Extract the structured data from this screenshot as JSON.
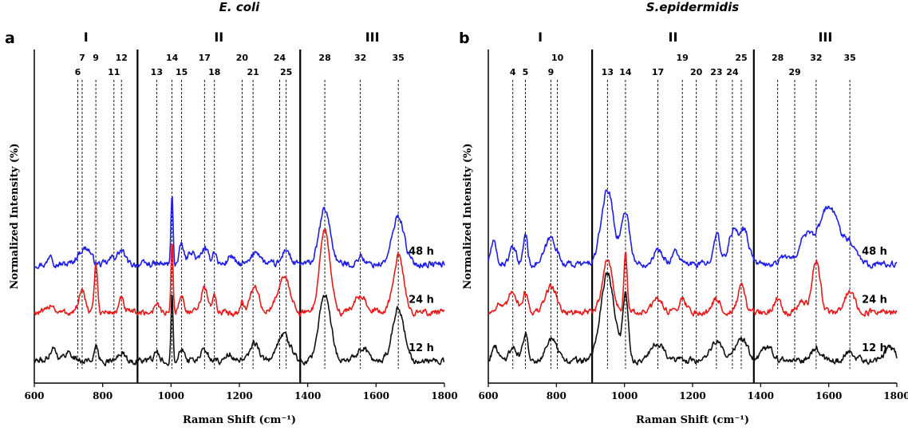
{
  "chart_data": [
    {
      "panel": "a",
      "title": "E. coli",
      "type": "line",
      "xlabel": "Raman Shift (cm⁻¹)",
      "ylabel": "Normalized Intensity (%)",
      "xlim": [
        600,
        1800
      ],
      "xticks": [
        600,
        800,
        1000,
        1200,
        1400,
        1600,
        1800
      ],
      "regions": [
        {
          "label": "I",
          "start": 600,
          "end": 902
        },
        {
          "label": "II",
          "start": 902,
          "end": 1378
        },
        {
          "label": "III",
          "start": 1378,
          "end": 1800
        }
      ],
      "peaks": [
        {
          "label": "6",
          "x": 727,
          "row": 2
        },
        {
          "label": "7",
          "x": 740,
          "row": 1
        },
        {
          "label": "9",
          "x": 780,
          "row": 1
        },
        {
          "label": "11",
          "x": 833,
          "row": 2
        },
        {
          "label": "12",
          "x": 855,
          "row": 1
        },
        {
          "label": "13",
          "x": 958,
          "row": 2
        },
        {
          "label": "14",
          "x": 1003,
          "row": 1
        },
        {
          "label": "15",
          "x": 1031,
          "row": 2
        },
        {
          "label": "17",
          "x": 1098,
          "row": 1
        },
        {
          "label": "18",
          "x": 1127,
          "row": 2
        },
        {
          "label": "20",
          "x": 1208,
          "row": 1
        },
        {
          "label": "21",
          "x": 1240,
          "row": 2
        },
        {
          "label": "24",
          "x": 1318,
          "row": 1
        },
        {
          "label": "25",
          "x": 1337,
          "row": 2
        },
        {
          "label": "28",
          "x": 1450,
          "row": 1
        },
        {
          "label": "32",
          "x": 1554,
          "row": 1
        },
        {
          "label": "35",
          "x": 1665,
          "row": 1
        }
      ],
      "series": [
        {
          "name": "48 h",
          "color": "#1f1fe6",
          "baseline": 2.2,
          "bands": [
            {
              "center": 648,
              "amp": 0.25,
              "width": 6
            },
            {
              "center": 740,
              "amp": 0.3,
              "width": 15
            },
            {
              "center": 760,
              "amp": 0.2,
              "width": 10
            },
            {
              "center": 855,
              "amp": 0.3,
              "width": 10
            },
            {
              "center": 830,
              "amp": 0.15,
              "width": 10
            },
            {
              "center": 1003,
              "amp": 1.6,
              "width": 3
            },
            {
              "center": 1031,
              "amp": 0.45,
              "width": 6
            },
            {
              "center": 1060,
              "amp": 0.3,
              "width": 10
            },
            {
              "center": 1098,
              "amp": 0.35,
              "width": 10
            },
            {
              "center": 1127,
              "amp": 0.3,
              "width": 6
            },
            {
              "center": 1175,
              "amp": 0.2,
              "width": 8
            },
            {
              "center": 1250,
              "amp": 0.3,
              "width": 12
            },
            {
              "center": 1337,
              "amp": 0.35,
              "width": 10
            },
            {
              "center": 1450,
              "amp": 1.25,
              "width": 16
            },
            {
              "center": 1555,
              "amp": 0.2,
              "width": 8
            },
            {
              "center": 1665,
              "amp": 1.1,
              "width": 17
            }
          ]
        },
        {
          "name": "24 h",
          "color": "#e61b1b",
          "baseline": 1.1,
          "bands": [
            {
              "center": 650,
              "amp": 0.2,
              "width": 8
            },
            {
              "center": 740,
              "amp": 0.45,
              "width": 10
            },
            {
              "center": 780,
              "amp": 1.05,
              "width": 5
            },
            {
              "center": 855,
              "amp": 0.3,
              "width": 7
            },
            {
              "center": 958,
              "amp": 0.25,
              "width": 6
            },
            {
              "center": 1003,
              "amp": 1.6,
              "width": 3
            },
            {
              "center": 1031,
              "amp": 0.35,
              "width": 8
            },
            {
              "center": 1098,
              "amp": 0.55,
              "width": 10
            },
            {
              "center": 1127,
              "amp": 0.35,
              "width": 6
            },
            {
              "center": 1208,
              "amp": 0.25,
              "width": 6
            },
            {
              "center": 1245,
              "amp": 0.6,
              "width": 12
            },
            {
              "center": 1330,
              "amp": 0.8,
              "width": 18
            },
            {
              "center": 1450,
              "amp": 1.9,
              "width": 15
            },
            {
              "center": 1555,
              "amp": 0.35,
              "width": 20
            },
            {
              "center": 1665,
              "amp": 1.3,
              "width": 15
            }
          ]
        },
        {
          "name": "12 h",
          "color": "#111111",
          "baseline": 0.0,
          "bands": [
            {
              "center": 655,
              "amp": 0.3,
              "width": 10
            },
            {
              "center": 700,
              "amp": 0.2,
              "width": 12
            },
            {
              "center": 780,
              "amp": 0.3,
              "width": 6
            },
            {
              "center": 855,
              "amp": 0.2,
              "width": 8
            },
            {
              "center": 958,
              "amp": 0.2,
              "width": 6
            },
            {
              "center": 1003,
              "amp": 1.6,
              "width": 3
            },
            {
              "center": 1031,
              "amp": 0.3,
              "width": 8
            },
            {
              "center": 1098,
              "amp": 0.25,
              "width": 10
            },
            {
              "center": 1170,
              "amp": 0.15,
              "width": 10
            },
            {
              "center": 1245,
              "amp": 0.4,
              "width": 12
            },
            {
              "center": 1330,
              "amp": 0.6,
              "width": 18
            },
            {
              "center": 1450,
              "amp": 1.5,
              "width": 17
            },
            {
              "center": 1560,
              "amp": 0.3,
              "width": 15
            },
            {
              "center": 1665,
              "amp": 1.2,
              "width": 17
            }
          ]
        }
      ]
    },
    {
      "panel": "b",
      "title": "S.epidermidis",
      "type": "line",
      "xlabel": "Raman Shift (cm⁻¹)",
      "ylabel": "Normalized Intensity (%)",
      "xlim": [
        600,
        1800
      ],
      "xticks": [
        600,
        800,
        1000,
        1200,
        1400,
        1600,
        1800
      ],
      "regions": [
        {
          "label": "I",
          "start": 600,
          "end": 905
        },
        {
          "label": "II",
          "start": 905,
          "end": 1380
        },
        {
          "label": "III",
          "start": 1380,
          "end": 1800
        }
      ],
      "peaks": [
        {
          "label": "4",
          "x": 672,
          "row": 2
        },
        {
          "label": "5",
          "x": 709,
          "row": 2
        },
        {
          "label": "9",
          "x": 784,
          "row": 2
        },
        {
          "label": "10",
          "x": 803,
          "row": 1
        },
        {
          "label": "13",
          "x": 950,
          "row": 2
        },
        {
          "label": "14",
          "x": 1003,
          "row": 2
        },
        {
          "label": "17",
          "x": 1098,
          "row": 2
        },
        {
          "label": "19",
          "x": 1170,
          "row": 1
        },
        {
          "label": "20",
          "x": 1211,
          "row": 2
        },
        {
          "label": "23",
          "x": 1270,
          "row": 2
        },
        {
          "label": "24",
          "x": 1317,
          "row": 2
        },
        {
          "label": "25",
          "x": 1343,
          "row": 1
        },
        {
          "label": "28",
          "x": 1450,
          "row": 1
        },
        {
          "label": "29",
          "x": 1500,
          "row": 2
        },
        {
          "label": "32",
          "x": 1563,
          "row": 1
        },
        {
          "label": "35",
          "x": 1662,
          "row": 1
        }
      ],
      "series": [
        {
          "name": "48 h",
          "color": "#1f1fe6",
          "baseline": 2.2,
          "bands": [
            {
              "center": 615,
              "amp": 0.5,
              "width": 8
            },
            {
              "center": 672,
              "amp": 0.35,
              "width": 10
            },
            {
              "center": 709,
              "amp": 0.7,
              "width": 6
            },
            {
              "center": 784,
              "amp": 0.6,
              "width": 16
            },
            {
              "center": 950,
              "amp": 1.7,
              "width": 18
            },
            {
              "center": 1003,
              "amp": 1.2,
              "width": 12
            },
            {
              "center": 1098,
              "amp": 0.3,
              "width": 15
            },
            {
              "center": 1150,
              "amp": 0.3,
              "width": 10
            },
            {
              "center": 1270,
              "amp": 0.7,
              "width": 10
            },
            {
              "center": 1317,
              "amp": 0.7,
              "width": 12
            },
            {
              "center": 1350,
              "amp": 0.8,
              "width": 15
            },
            {
              "center": 1470,
              "amp": 0.2,
              "width": 12
            },
            {
              "center": 1530,
              "amp": 0.6,
              "width": 18
            },
            {
              "center": 1600,
              "amp": 1.3,
              "width": 30
            },
            {
              "center": 1665,
              "amp": 0.4,
              "width": 20
            }
          ]
        },
        {
          "name": "24 h",
          "color": "#e61b1b",
          "baseline": 1.1,
          "bands": [
            {
              "center": 630,
              "amp": 0.2,
              "width": 10
            },
            {
              "center": 672,
              "amp": 0.5,
              "width": 12
            },
            {
              "center": 709,
              "amp": 0.45,
              "width": 8
            },
            {
              "center": 784,
              "amp": 0.6,
              "width": 16
            },
            {
              "center": 950,
              "amp": 1.2,
              "width": 15
            },
            {
              "center": 1003,
              "amp": 1.3,
              "width": 5
            },
            {
              "center": 1098,
              "amp": 0.3,
              "width": 15
            },
            {
              "center": 1170,
              "amp": 0.3,
              "width": 12
            },
            {
              "center": 1270,
              "amp": 0.3,
              "width": 12
            },
            {
              "center": 1343,
              "amp": 0.6,
              "width": 10
            },
            {
              "center": 1450,
              "amp": 0.35,
              "width": 10
            },
            {
              "center": 1520,
              "amp": 0.25,
              "width": 12
            },
            {
              "center": 1563,
              "amp": 1.2,
              "width": 12
            },
            {
              "center": 1662,
              "amp": 0.5,
              "width": 14
            }
          ]
        },
        {
          "name": "12 h",
          "color": "#111111",
          "baseline": 0.0,
          "bands": [
            {
              "center": 620,
              "amp": 0.3,
              "width": 10
            },
            {
              "center": 672,
              "amp": 0.3,
              "width": 12
            },
            {
              "center": 709,
              "amp": 0.6,
              "width": 8
            },
            {
              "center": 784,
              "amp": 0.5,
              "width": 16
            },
            {
              "center": 950,
              "amp": 2.0,
              "width": 20
            },
            {
              "center": 1003,
              "amp": 1.5,
              "width": 8
            },
            {
              "center": 1098,
              "amp": 0.4,
              "width": 20
            },
            {
              "center": 1270,
              "amp": 0.4,
              "width": 20
            },
            {
              "center": 1343,
              "amp": 0.5,
              "width": 18
            },
            {
              "center": 1420,
              "amp": 0.3,
              "width": 15
            },
            {
              "center": 1563,
              "amp": 0.3,
              "width": 14
            },
            {
              "center": 1662,
              "amp": 0.2,
              "width": 14
            },
            {
              "center": 1780,
              "amp": 0.3,
              "width": 15
            }
          ]
        }
      ]
    }
  ]
}
